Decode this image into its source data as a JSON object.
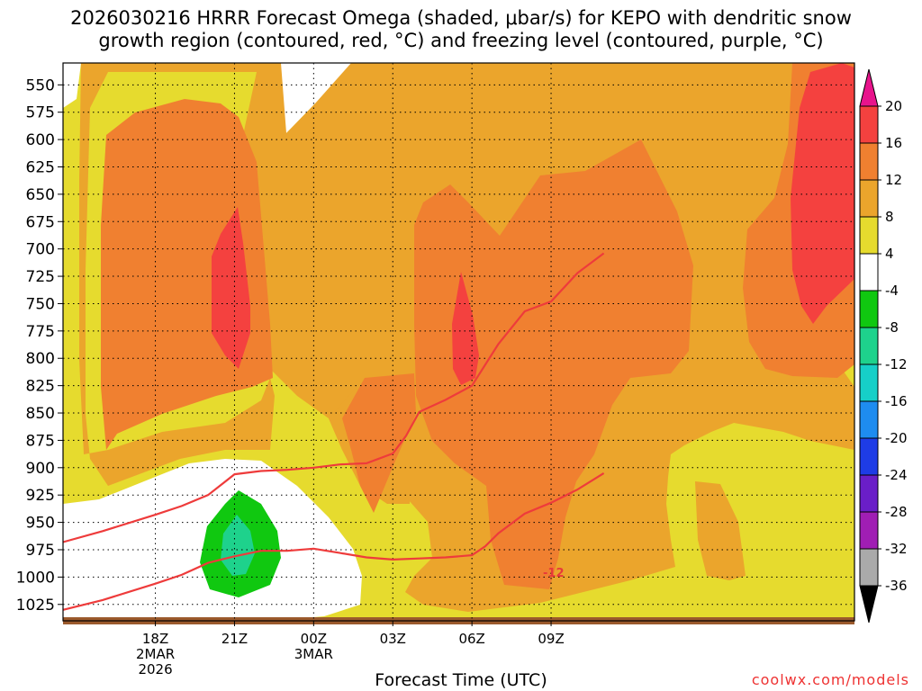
{
  "title_line1": "2026030216 HRRR Forecast Omega (shaded, μbar/s) for KEPO with dendritic snow",
  "title_line2": "growth region (contoured, red, °C) and freezing level (contoured, purple, °C)",
  "x_axis_title": "Forecast Time (UTC)",
  "credit": "coolwx.com/models",
  "contour_label": "-12",
  "chart_data": {
    "type": "time-height cross section (shaded contour)",
    "y_axis": {
      "label": "Pressure (mb)",
      "ticks": [
        550,
        575,
        600,
        625,
        650,
        675,
        700,
        725,
        750,
        775,
        800,
        825,
        850,
        875,
        900,
        925,
        950,
        975,
        1000,
        1025
      ],
      "range": [
        1040,
        530
      ]
    },
    "x_axis": {
      "label": "Forecast Time (UTC)",
      "range_hours": [
        -3.5,
        26.5
      ],
      "ticks": [
        {
          "hour": 0,
          "lines": [
            "18Z",
            "2MAR",
            "2026"
          ]
        },
        {
          "hour": 3,
          "lines": [
            "21Z"
          ]
        },
        {
          "hour": 6,
          "lines": [
            "00Z",
            "3MAR"
          ]
        },
        {
          "hour": 9,
          "lines": [
            "03Z"
          ]
        },
        {
          "hour": 12,
          "lines": [
            "06Z"
          ]
        },
        {
          "hour": 15,
          "lines": [
            "09Z"
          ]
        }
      ]
    },
    "colorbar": {
      "units": "μbar/s",
      "labels": [
        20,
        16,
        12,
        8,
        4,
        -4,
        -8,
        -12,
        -16,
        -20,
        -24,
        -28,
        -32,
        -36
      ],
      "bins": [
        {
          "range": ">20",
          "color": "#e8148c"
        },
        {
          "range": "16 to 20",
          "color": "#f4413f"
        },
        {
          "range": "12 to 16",
          "color": "#f08030"
        },
        {
          "range": "8 to 12",
          "color": "#eba52c"
        },
        {
          "range": "4 to 8",
          "color": "#e6db2e"
        },
        {
          "range": "-4 to 4",
          "color": "#ffffff"
        },
        {
          "range": "-8 to -4",
          "color": "#10c810"
        },
        {
          "range": "-12 to -8",
          "color": "#1ed28c"
        },
        {
          "range": "-16 to -12",
          "color": "#16cfc8"
        },
        {
          "range": "-20 to -16",
          "color": "#1e8cf0"
        },
        {
          "range": "-24 to -20",
          "color": "#1e3ce6"
        },
        {
          "range": "-28 to -24",
          "color": "#6a1ec8"
        },
        {
          "range": "-32 to -28",
          "color": "#a01eb4"
        },
        {
          "range": "-36 to -32",
          "color": "#aaaaaa"
        },
        {
          "range": "<-36",
          "color": "#000000"
        }
      ]
    },
    "dgz_contours": [
      {
        "name": "-12C isotherm",
        "label": "-12",
        "points": [
          [
            -3.5,
            968
          ],
          [
            -2,
            958
          ],
          [
            0,
            943
          ],
          [
            1,
            935
          ],
          [
            2,
            925
          ],
          [
            3,
            906
          ],
          [
            4,
            903
          ],
          [
            5,
            902
          ],
          [
            6,
            900
          ],
          [
            7,
            897
          ],
          [
            8,
            896
          ],
          [
            9,
            887
          ],
          [
            9.5,
            871
          ],
          [
            10,
            849
          ],
          [
            11,
            838
          ],
          [
            12,
            825
          ],
          [
            13,
            787
          ],
          [
            14,
            757
          ],
          [
            15,
            748
          ],
          [
            16,
            722
          ],
          [
            17,
            704
          ]
        ]
      },
      {
        "name": "-18C isotherm",
        "points": [
          [
            -3.5,
            1030
          ],
          [
            -2,
            1021
          ],
          [
            0,
            1006
          ],
          [
            1,
            998
          ],
          [
            2,
            987
          ],
          [
            3,
            981
          ],
          [
            4,
            976
          ],
          [
            5,
            976
          ],
          [
            6,
            974
          ],
          [
            7,
            978
          ],
          [
            8,
            982
          ],
          [
            9,
            984
          ],
          [
            10,
            983
          ],
          [
            11,
            982
          ],
          [
            12,
            980
          ],
          [
            12.5,
            972
          ],
          [
            13,
            960
          ],
          [
            14,
            942
          ],
          [
            15,
            932
          ],
          [
            16,
            920
          ],
          [
            17,
            905
          ]
        ]
      }
    ],
    "omega_features": [
      {
        "value_range": "-8 to -4",
        "hour": 2,
        "p_range": [
          890,
          1000
        ]
      },
      {
        "value_range": "-12 to -8",
        "hour": 2,
        "p_range": [
          920,
          980
        ]
      },
      {
        "value_range": "16 to 20",
        "hour": 1.8,
        "p_range": [
          635,
          770
        ]
      },
      {
        "value_range": "16 to 20",
        "hour": 7.7,
        "p_range": [
          695,
          780
        ]
      },
      {
        "value_range": "16 to 20",
        "hour": 16.2,
        "p_range": [
          545,
          730
        ]
      }
    ],
    "ground_pressure_mb": 1033
  }
}
